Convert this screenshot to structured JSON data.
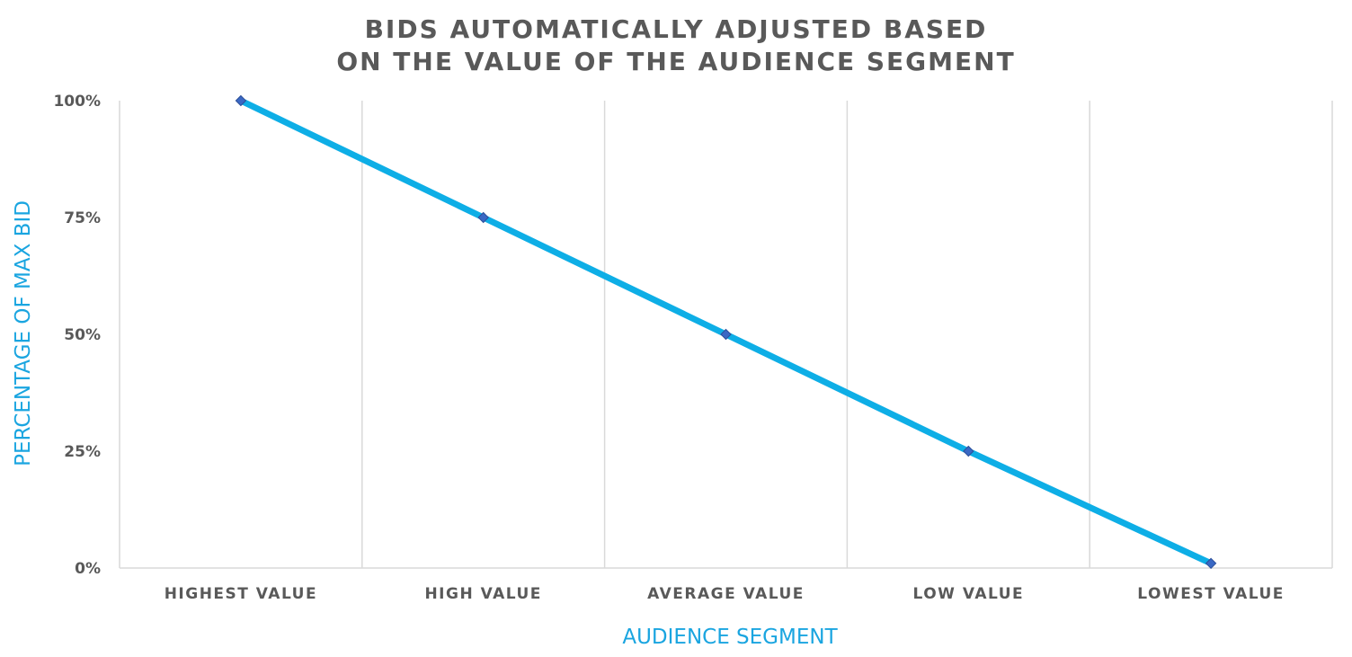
{
  "chart_data": {
    "type": "line",
    "title_lines": [
      "BIDS AUTOMATICALLY ADJUSTED BASED",
      "ON THE VALUE OF THE AUDIENCE SEGMENT"
    ],
    "xlabel": "AUDIENCE SEGMENT",
    "ylabel": "PERCENTAGE OF MAX BID",
    "categories": [
      "HIGHEST VALUE",
      "HIGH VALUE",
      "AVERAGE VALUE",
      "LOW VALUE",
      "LOWEST VALUE"
    ],
    "yticks": [
      {
        "value": 0,
        "label": "0%"
      },
      {
        "value": 25,
        "label": "25%"
      },
      {
        "value": 50,
        "label": "50%"
      },
      {
        "value": 75,
        "label": "75%"
      },
      {
        "value": 100,
        "label": "100%"
      }
    ],
    "ylim": [
      0,
      100
    ],
    "series": [
      {
        "values": [
          100,
          75,
          50,
          25,
          1
        ]
      }
    ],
    "grid": "vertical",
    "colors": {
      "line": "#0eaee6",
      "marker": "#3a68c4",
      "marker_stroke": "#2c4f99",
      "grid": "#d9d9d9",
      "text": "#595959",
      "axis_label": "#1aa5e0"
    }
  }
}
